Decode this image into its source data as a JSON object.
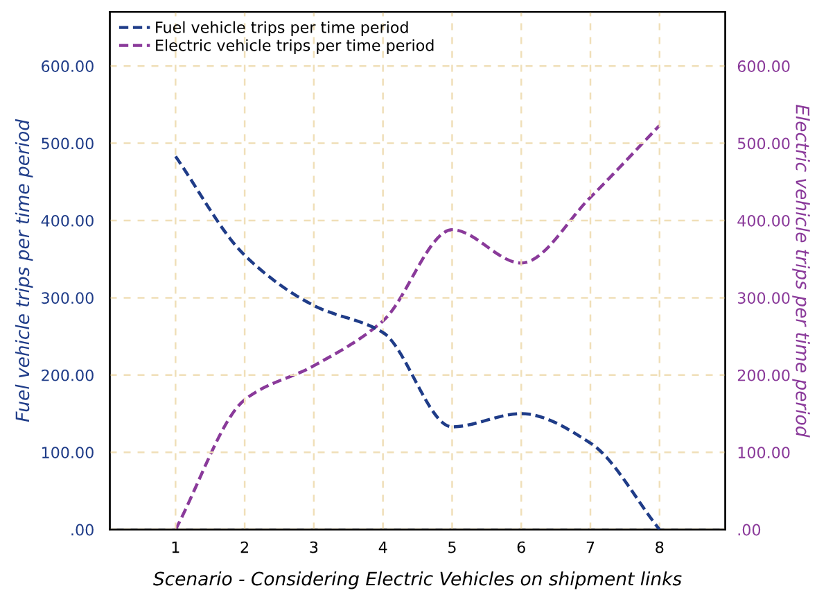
{
  "chart_data": {
    "type": "line",
    "xlabel": "Scenario - Considering Electric Vehicles on shipment links",
    "ylabel": "Fuel vehicle trips per time period",
    "y2label": "Electric vehicle trips per time period",
    "x": [
      1,
      2,
      3,
      4,
      5,
      6,
      7,
      8
    ],
    "series": [
      {
        "name": "Fuel vehicle trips per time period",
        "color": "#1f3c88",
        "values": [
          483,
          355,
          290,
          255,
          133,
          150,
          112,
          0
        ]
      },
      {
        "name": "Electric vehicle trips per time period",
        "color": "#8a3a9a",
        "values": [
          0,
          168,
          212,
          270,
          388,
          345,
          430,
          523
        ],
        "axis": "y2"
      }
    ],
    "xlim": [
      0.05,
      8.95
    ],
    "xticks": [
      1,
      2,
      3,
      4,
      5,
      6,
      7,
      8
    ],
    "ylim": [
      0,
      670
    ],
    "yticks": [
      {
        "value": 0,
        "label": ".00"
      },
      {
        "value": 100,
        "label": "100.00"
      },
      {
        "value": 200,
        "label": "200.00"
      },
      {
        "value": 300,
        "label": "300.00"
      },
      {
        "value": 400,
        "label": "400.00"
      },
      {
        "value": 500,
        "label": "500.00"
      },
      {
        "value": 600,
        "label": "600.00"
      }
    ],
    "y2lim": [
      0,
      670
    ],
    "y2ticks": [
      {
        "value": 0,
        "label": ".00"
      },
      {
        "value": 100,
        "label": "100.00"
      },
      {
        "value": 200,
        "label": "200.00"
      },
      {
        "value": 300,
        "label": "300.00"
      },
      {
        "value": 400,
        "label": "400.00"
      },
      {
        "value": 500,
        "label": "500.00"
      },
      {
        "value": 600,
        "label": "600.00"
      }
    ],
    "grid": true,
    "legend": "top left",
    "line_style": "dashed",
    "marker": "none"
  }
}
